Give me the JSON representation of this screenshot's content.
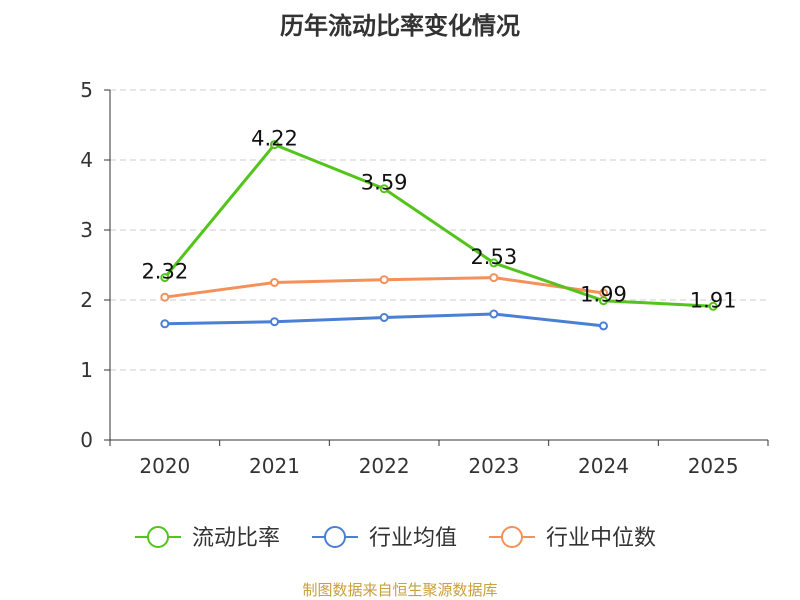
{
  "chart_data": {
    "type": "line",
    "title": "历年流动比率变化情况",
    "categories": [
      "2020",
      "2021",
      "2022",
      "2023",
      "2024",
      "2025"
    ],
    "ylim": [
      0,
      5
    ],
    "yticks": [
      0,
      1,
      2,
      3,
      4,
      5
    ],
    "grid": true,
    "legend_position": "bottom",
    "series": [
      {
        "name": "流动比率",
        "color": "#52c41a",
        "values": [
          2.32,
          4.22,
          3.59,
          2.53,
          1.99,
          1.91
        ],
        "labels": true
      },
      {
        "name": "行业均值",
        "color": "#4a7fd6",
        "values": [
          1.66,
          1.69,
          1.75,
          1.8,
          1.63,
          null
        ],
        "labels": false
      },
      {
        "name": "行业中位数",
        "color": "#f4905a",
        "values": [
          2.04,
          2.25,
          2.29,
          2.32,
          2.1,
          null
        ],
        "labels": false
      }
    ]
  },
  "footer": {
    "source": "制图数据来自恒生聚源数据库"
  }
}
